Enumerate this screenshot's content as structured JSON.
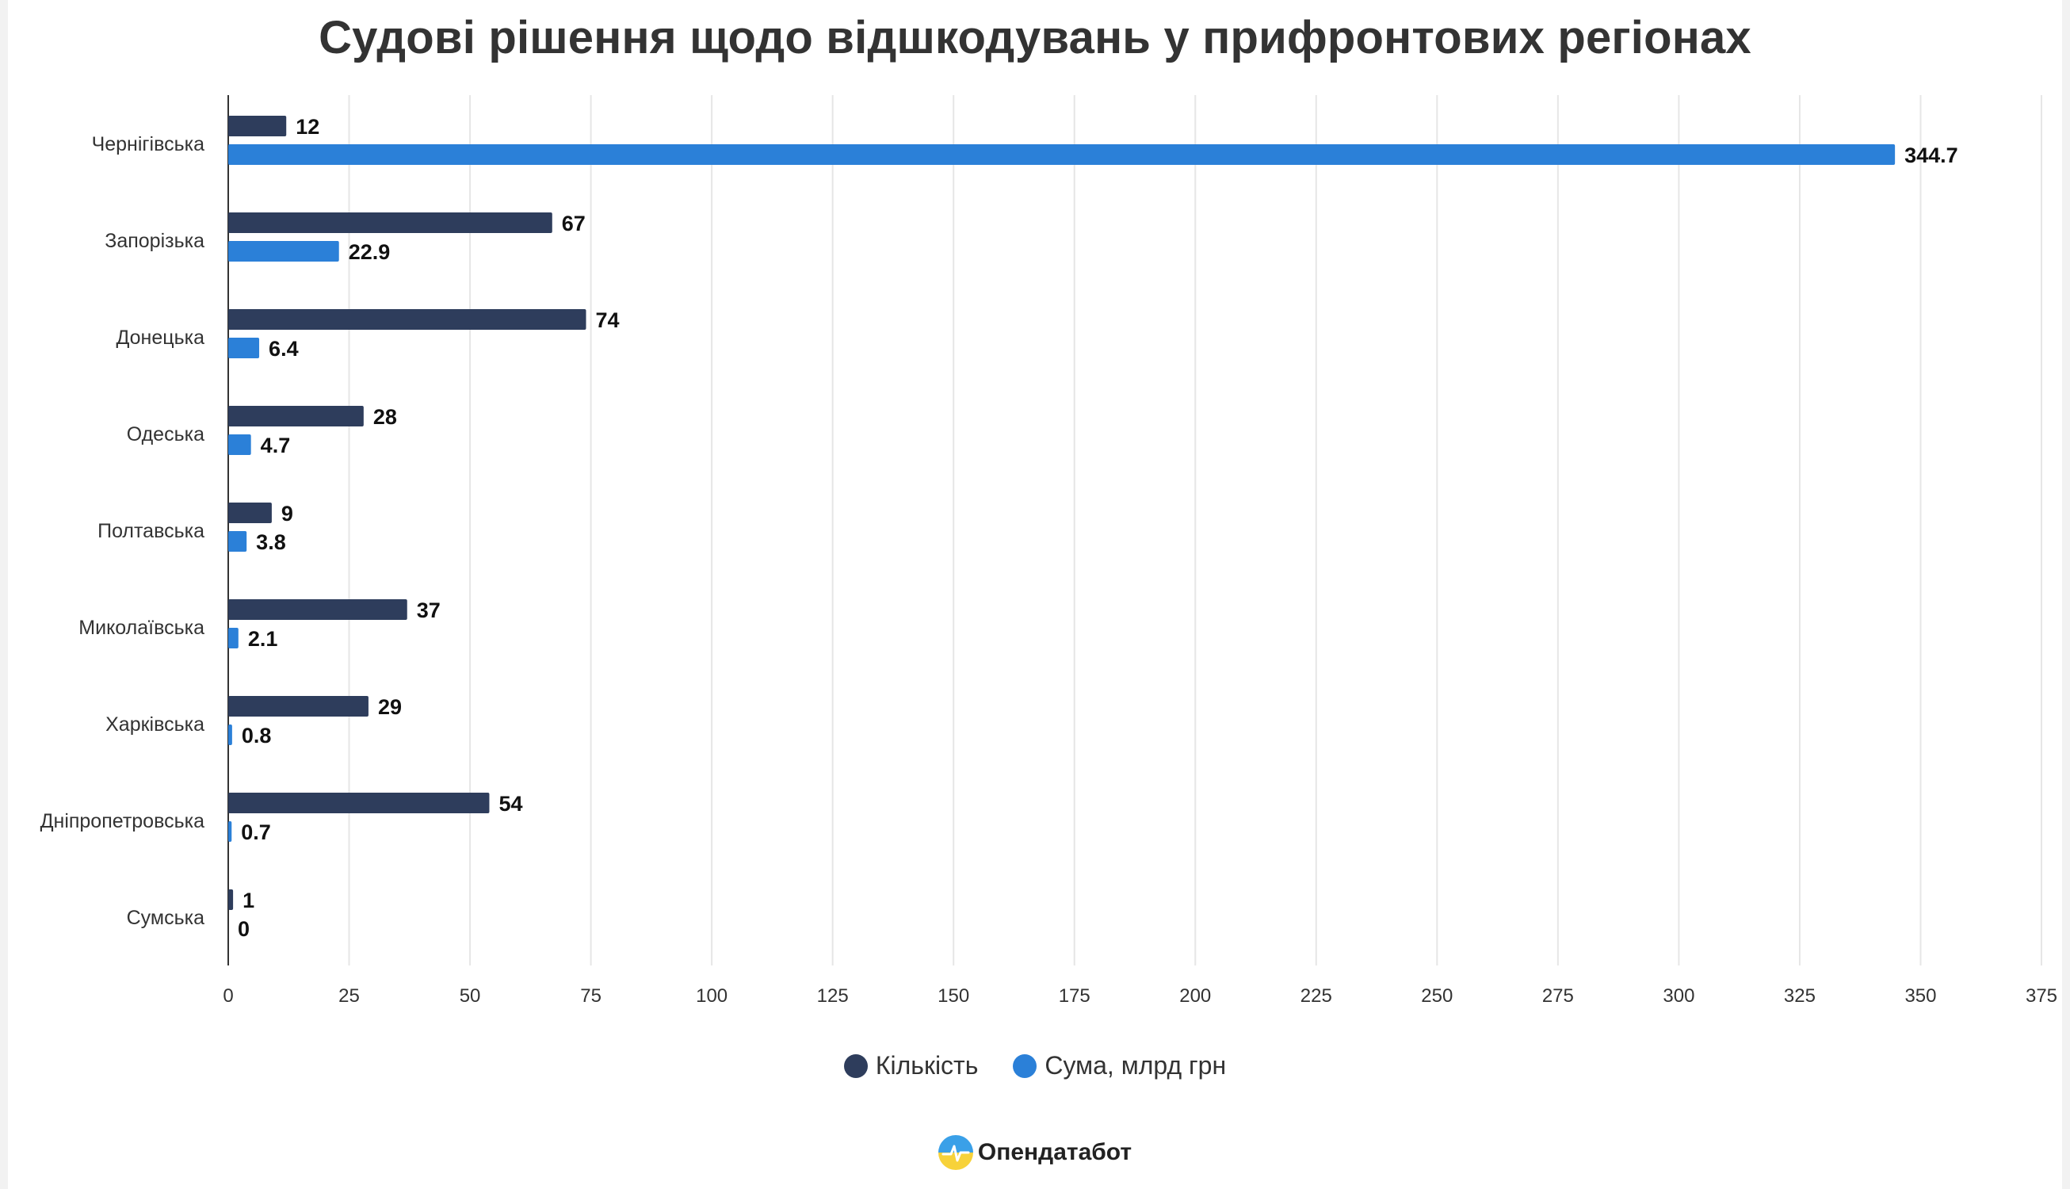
{
  "chart_data": {
    "type": "bar",
    "orientation": "horizontal",
    "title": "Судові рішення щодо відшкодувань у прифронтових регіонах",
    "categories": [
      "Чернігівська",
      "Запорізька",
      "Донецька",
      "Одеська",
      "Полтавська",
      "Миколаївська",
      "Харківська",
      "Дніпропетровська",
      "Сумська"
    ],
    "series": [
      {
        "name": "Кількість",
        "color": "#2e3d5c",
        "values": [
          12,
          67,
          74,
          28,
          9,
          37,
          29,
          54,
          1
        ],
        "labels": [
          "12",
          "67",
          "74",
          "28",
          "9",
          "37",
          "29",
          "54",
          "1"
        ]
      },
      {
        "name": "Сума, млрд грн",
        "color": "#2b80d8",
        "values": [
          344.7,
          22.9,
          6.4,
          4.7,
          3.8,
          2.1,
          0.8,
          0.7,
          0
        ],
        "labels": [
          "344.7",
          "22.9",
          "6.4",
          "4.7",
          "3.8",
          "2.1",
          "0.8",
          "0.7",
          "0"
        ]
      }
    ],
    "xlim": [
      0,
      375
    ],
    "xticks": [
      0,
      25,
      50,
      75,
      100,
      125,
      150,
      175,
      200,
      225,
      250,
      275,
      300,
      325,
      350,
      375
    ],
    "grid": true,
    "legend_position": "bottom"
  },
  "brand": {
    "name": "Опендатабот",
    "icon": "opendatabot-logo-icon"
  }
}
